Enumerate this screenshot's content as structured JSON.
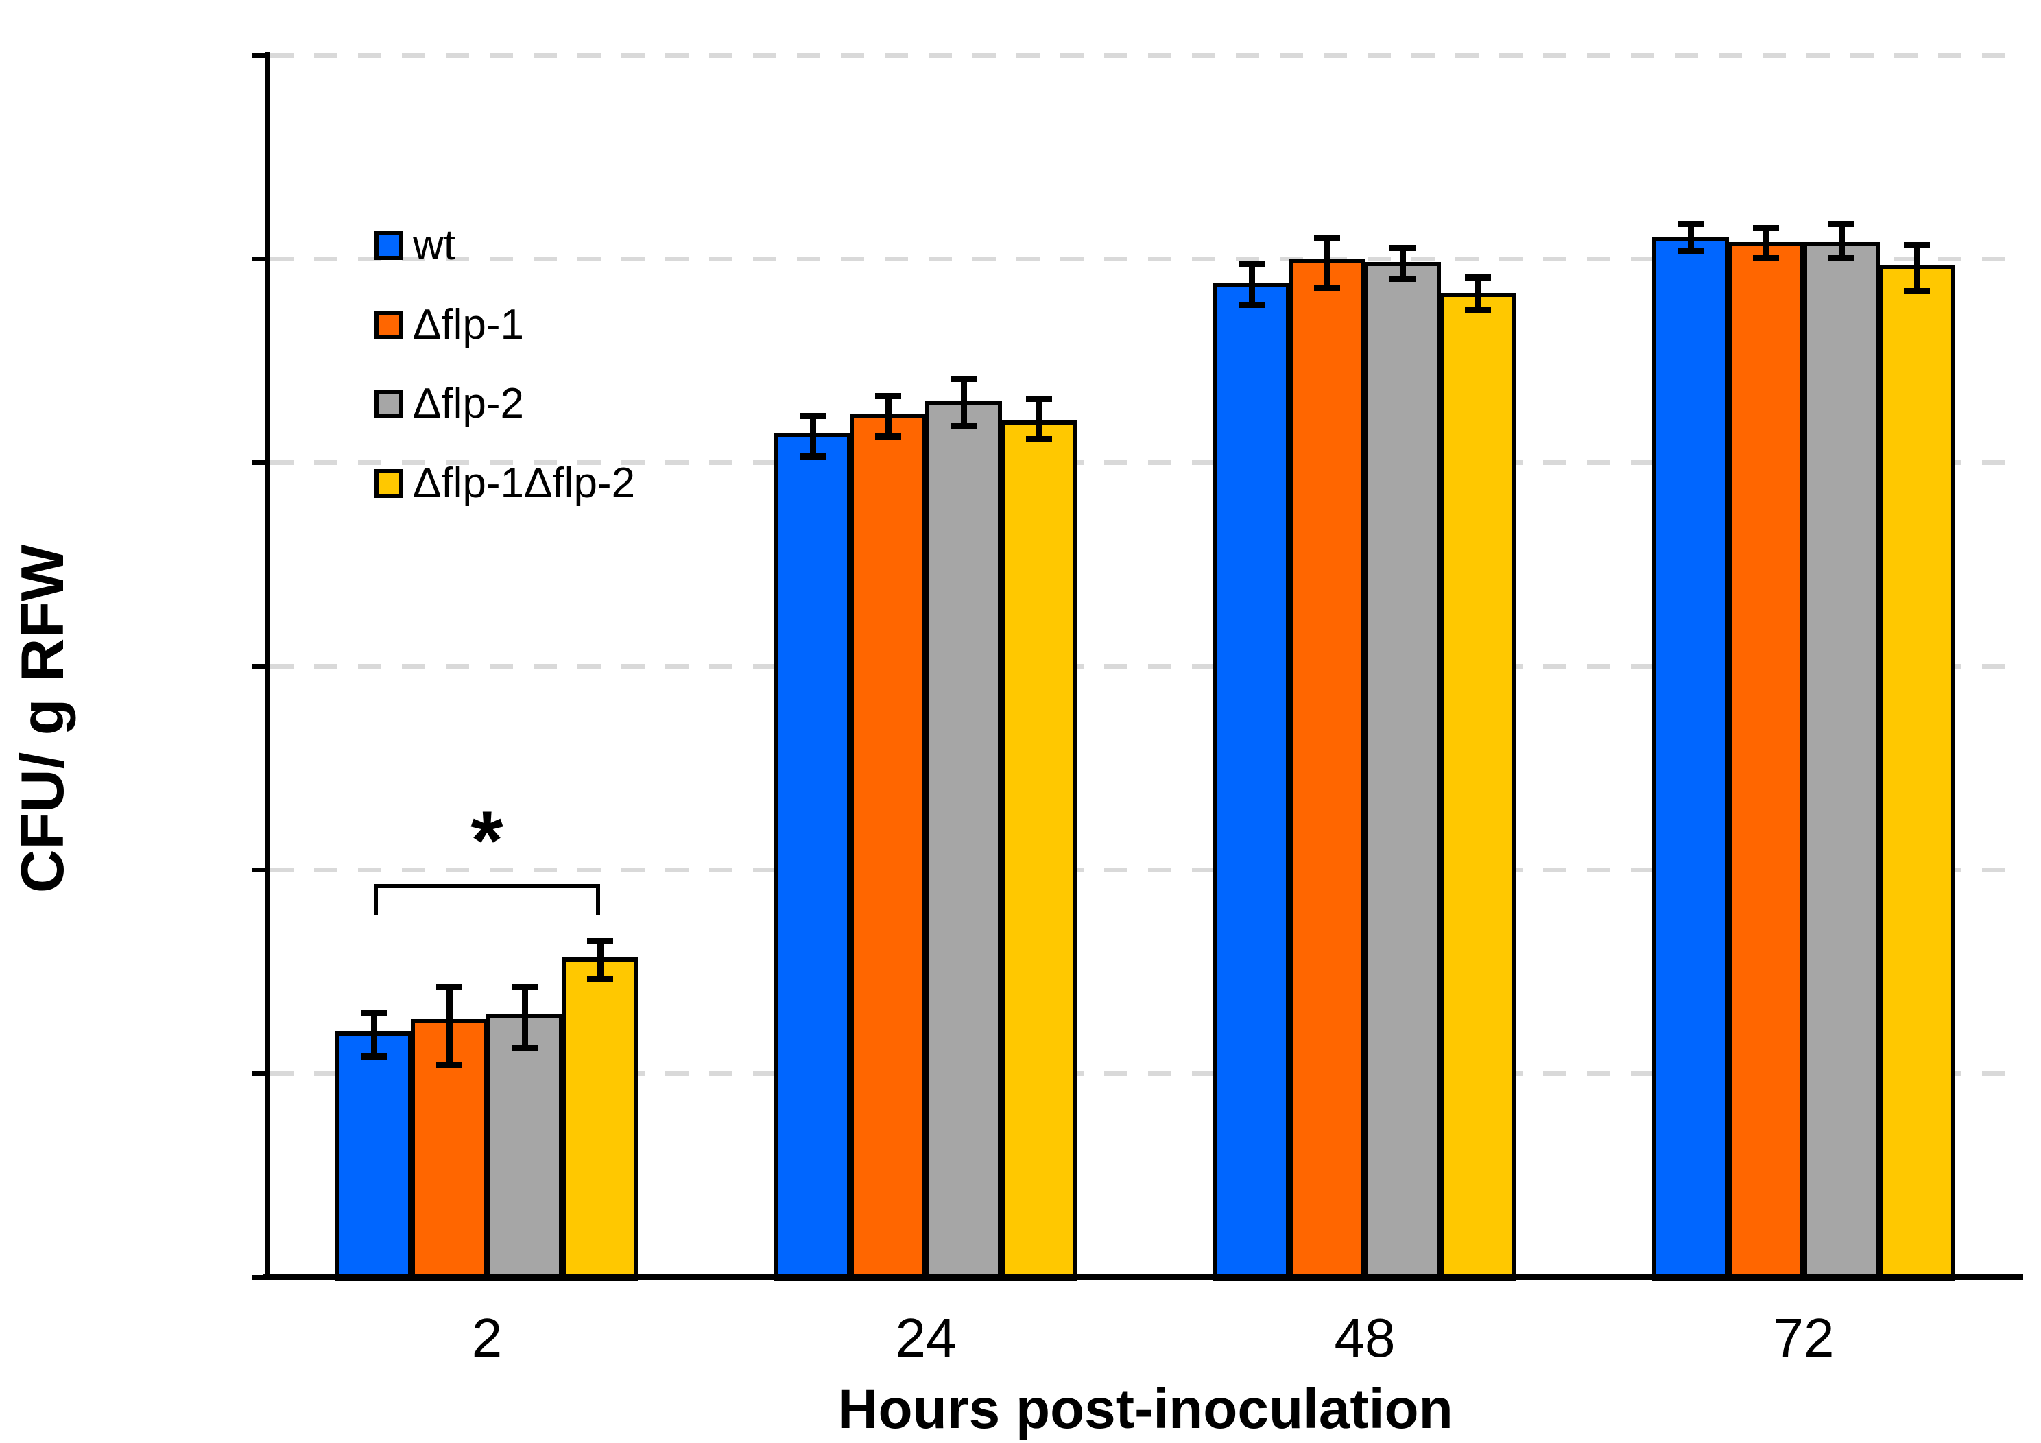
{
  "figure": {
    "background": "#FFFFFF",
    "text_color": "#000000"
  },
  "chart_data": {
    "type": "bar",
    "title": "",
    "xlabel": "Hours post-inoculation",
    "ylabel": "CFU/ g RFW",
    "y_scale": "log10",
    "ylim": [
      100,
      100000000
    ],
    "y_tick_base": "10",
    "y_tick_exponents": [
      2,
      3,
      4,
      5,
      6,
      7,
      8
    ],
    "grid": "horizontal dashed at each decade",
    "gridline_color": "#D9D9D9",
    "axis_color": "#000000",
    "error_bar_color": "#000000",
    "legend_position": "upper-left-inside",
    "categories": [
      "2",
      "24",
      "48",
      "72"
    ],
    "series": [
      {
        "name": "wt",
        "color": "#0066FF",
        "values": [
          1600,
          1400000,
          7600000,
          12700000
        ],
        "err_hi": [
          2000,
          1700000,
          9400000,
          14900000
        ],
        "err_lo": [
          1200,
          1060000,
          5900000,
          10800000
        ]
      },
      {
        "name": "Δflp-1",
        "color": "#FF6600",
        "values": [
          1850,
          1720000,
          10000000,
          12000000
        ],
        "err_hi": [
          2650,
          2120000,
          12600000,
          14200000
        ],
        "err_lo": [
          1100,
          1330000,
          7100000,
          10000000
        ]
      },
      {
        "name": "Δflp-2",
        "color": "#A6A6A6",
        "values": [
          1950,
          2000000,
          9600000,
          12000000
        ],
        "err_hi": [
          2650,
          2580000,
          11300000,
          14800000
        ],
        "err_lo": [
          1330,
          1500000,
          7900000,
          10000000
        ]
      },
      {
        "name": "Δflp-1Δflp-2",
        "color": "#FFC800",
        "values": [
          3700,
          1600000,
          6800000,
          9300000
        ],
        "err_hi": [
          4500,
          2060000,
          8100000,
          11700000
        ],
        "err_lo": [
          2900,
          1290000,
          5600000,
          6900000
        ]
      }
    ],
    "significance": {
      "symbol": "*",
      "category_index": 0,
      "from_series_index": 0,
      "to_series_index": 3,
      "bracket_value": 8500,
      "symbol_value": 16500
    }
  }
}
